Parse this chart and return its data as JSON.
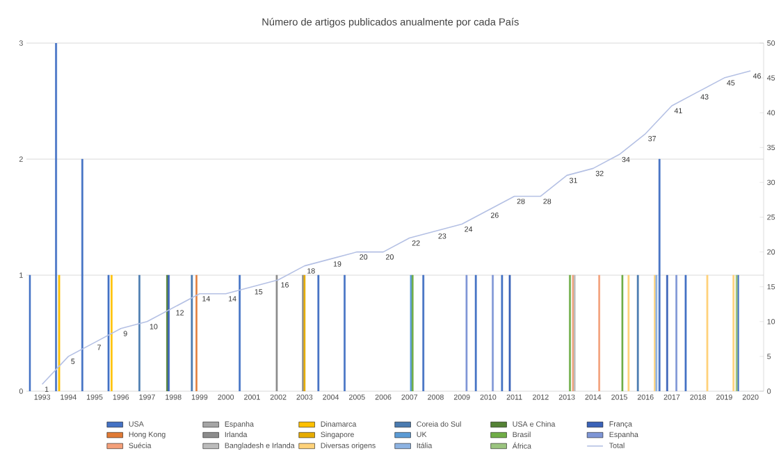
{
  "chart_data": {
    "type": "bar",
    "title": "Número de artigos publicados anualmente por cada País",
    "categories": [
      "1993",
      "1994",
      "1995",
      "1996",
      "1997",
      "1998",
      "1999",
      "2000",
      "2001",
      "2002",
      "2003",
      "2004",
      "2005",
      "2006",
      "2007",
      "2008",
      "2009",
      "2010",
      "2011",
      "2012",
      "2013",
      "2014",
      "2015",
      "2016",
      "2017",
      "2018",
      "2019",
      "2020"
    ],
    "ylim": [
      0,
      3
    ],
    "yticks": [
      0,
      1,
      2,
      3
    ],
    "y2lim": [
      0,
      50
    ],
    "y2ticks": [
      0,
      5,
      10,
      15,
      20,
      25,
      30,
      35,
      40,
      45,
      50
    ],
    "grid": "y",
    "legend": "bottom",
    "series": [
      {
        "name": "USA",
        "color": "#4472c4",
        "values": [
          1,
          3,
          2,
          1,
          null,
          null,
          null,
          null,
          1,
          null,
          null,
          1,
          1,
          null,
          null,
          1,
          null,
          1,
          1,
          null,
          null,
          null,
          null,
          null,
          2,
          1,
          null,
          1
        ]
      },
      {
        "name": "Espanha",
        "color": "#a5a5a5",
        "values": [
          null,
          null,
          null,
          null,
          null,
          null,
          null,
          null,
          null,
          null,
          null,
          null,
          null,
          null,
          null,
          null,
          null,
          null,
          null,
          null,
          null,
          null,
          null,
          null,
          null,
          null,
          null,
          null
        ]
      },
      {
        "name": "Dinamarca",
        "color": "#ffc000",
        "values": [
          null,
          1,
          null,
          1,
          null,
          null,
          null,
          null,
          null,
          null,
          null,
          null,
          null,
          null,
          null,
          null,
          null,
          null,
          null,
          null,
          null,
          null,
          null,
          null,
          null,
          null,
          null,
          null
        ]
      },
      {
        "name": "Coreia do Sul",
        "color": "#4a7bb0",
        "values": [
          null,
          null,
          null,
          null,
          1,
          null,
          1,
          null,
          null,
          null,
          null,
          null,
          null,
          null,
          null,
          null,
          null,
          null,
          null,
          null,
          null,
          null,
          null,
          1,
          null,
          null,
          null,
          null
        ]
      },
      {
        "name": "USA e China",
        "color": "#548235",
        "values": [
          null,
          null,
          null,
          null,
          null,
          1,
          null,
          null,
          null,
          null,
          null,
          null,
          null,
          null,
          null,
          null,
          null,
          null,
          null,
          null,
          null,
          null,
          null,
          null,
          null,
          null,
          null,
          null
        ]
      },
      {
        "name": "França",
        "color": "#3a62b8",
        "values": [
          null,
          null,
          null,
          null,
          null,
          1,
          null,
          null,
          null,
          null,
          null,
          null,
          null,
          null,
          null,
          null,
          null,
          null,
          1,
          null,
          null,
          null,
          null,
          null,
          1,
          null,
          null,
          null
        ]
      },
      {
        "name": "Hong Kong",
        "color": "#e07a35",
        "values": [
          null,
          null,
          null,
          null,
          null,
          null,
          1,
          null,
          null,
          null,
          null,
          null,
          null,
          null,
          null,
          null,
          null,
          null,
          null,
          null,
          null,
          null,
          null,
          null,
          null,
          null,
          null,
          null
        ]
      },
      {
        "name": "Irlanda",
        "color": "#8c8c8c",
        "values": [
          null,
          null,
          null,
          null,
          null,
          null,
          null,
          null,
          null,
          1,
          1,
          null,
          null,
          null,
          null,
          null,
          null,
          null,
          null,
          null,
          null,
          null,
          null,
          null,
          null,
          null,
          null,
          null
        ]
      },
      {
        "name": "Singapore",
        "color": "#e6ac00",
        "values": [
          null,
          null,
          null,
          null,
          null,
          null,
          null,
          null,
          null,
          null,
          1,
          null,
          null,
          null,
          null,
          null,
          null,
          null,
          null,
          null,
          null,
          null,
          null,
          null,
          null,
          null,
          null,
          null
        ]
      },
      {
        "name": "UK",
        "color": "#5b9bd5",
        "values": [
          null,
          null,
          null,
          null,
          null,
          null,
          null,
          null,
          null,
          null,
          null,
          null,
          null,
          null,
          1,
          null,
          null,
          null,
          null,
          null,
          null,
          null,
          null,
          null,
          null,
          null,
          null,
          null
        ]
      },
      {
        "name": "Brasil",
        "color": "#70ad47",
        "values": [
          null,
          null,
          null,
          null,
          null,
          null,
          null,
          null,
          null,
          null,
          null,
          null,
          null,
          null,
          1,
          null,
          null,
          null,
          null,
          null,
          1,
          null,
          1,
          null,
          null,
          null,
          null,
          null
        ]
      },
      {
        "name": "Espanha",
        "color": "#7f96d6",
        "values": [
          null,
          null,
          null,
          null,
          null,
          null,
          null,
          null,
          null,
          null,
          null,
          null,
          null,
          null,
          null,
          null,
          1,
          1,
          null,
          null,
          null,
          null,
          null,
          null,
          1,
          null,
          null,
          null
        ]
      },
      {
        "name": "Suécia",
        "color": "#f4a07a",
        "values": [
          null,
          null,
          null,
          null,
          null,
          null,
          null,
          null,
          null,
          null,
          null,
          null,
          null,
          null,
          null,
          null,
          null,
          null,
          null,
          null,
          1,
          1,
          null,
          null,
          null,
          null,
          null,
          null
        ]
      },
      {
        "name": "Bangladesh e Irlanda",
        "color": "#bcbcbc",
        "values": [
          null,
          null,
          null,
          null,
          null,
          null,
          null,
          null,
          null,
          null,
          null,
          null,
          null,
          null,
          null,
          null,
          null,
          null,
          null,
          null,
          1,
          null,
          null,
          null,
          null,
          null,
          null,
          null
        ]
      },
      {
        "name": "Diversas origens",
        "color": "#ffd27a",
        "values": [
          null,
          null,
          null,
          null,
          null,
          null,
          null,
          null,
          null,
          null,
          null,
          null,
          null,
          null,
          null,
          null,
          null,
          null,
          null,
          null,
          null,
          null,
          1,
          1,
          null,
          1,
          1,
          null
        ]
      },
      {
        "name": "Itália",
        "color": "#8db3e2",
        "values": [
          null,
          null,
          null,
          null,
          null,
          null,
          null,
          null,
          null,
          null,
          null,
          null,
          null,
          null,
          null,
          null,
          null,
          null,
          null,
          null,
          null,
          null,
          null,
          1,
          null,
          null,
          null,
          null
        ]
      },
      {
        "name": "África",
        "color": "#9bc47f",
        "values": [
          null,
          null,
          null,
          null,
          null,
          null,
          null,
          null,
          null,
          null,
          null,
          null,
          null,
          null,
          null,
          null,
          null,
          null,
          null,
          null,
          null,
          null,
          null,
          null,
          null,
          null,
          1,
          null
        ]
      },
      {
        "name": "Total",
        "color": "#b4c0e4",
        "type": "line",
        "axis": "y2",
        "values": [
          1,
          5,
          7,
          9,
          10,
          12,
          14,
          14,
          15,
          16,
          18,
          19,
          20,
          20,
          22,
          23,
          24,
          26,
          28,
          28,
          31,
          32,
          34,
          37,
          41,
          43,
          45,
          46
        ],
        "value_labels": [
          "1",
          "5",
          "7",
          "9",
          "10",
          "12",
          "14",
          "14",
          "15",
          "16",
          "18",
          "19",
          "20",
          "20",
          "22",
          "23",
          "24",
          "26",
          "28",
          "28",
          "31",
          "32",
          "34",
          "37",
          "41",
          "43",
          "45",
          "46"
        ]
      }
    ]
  }
}
